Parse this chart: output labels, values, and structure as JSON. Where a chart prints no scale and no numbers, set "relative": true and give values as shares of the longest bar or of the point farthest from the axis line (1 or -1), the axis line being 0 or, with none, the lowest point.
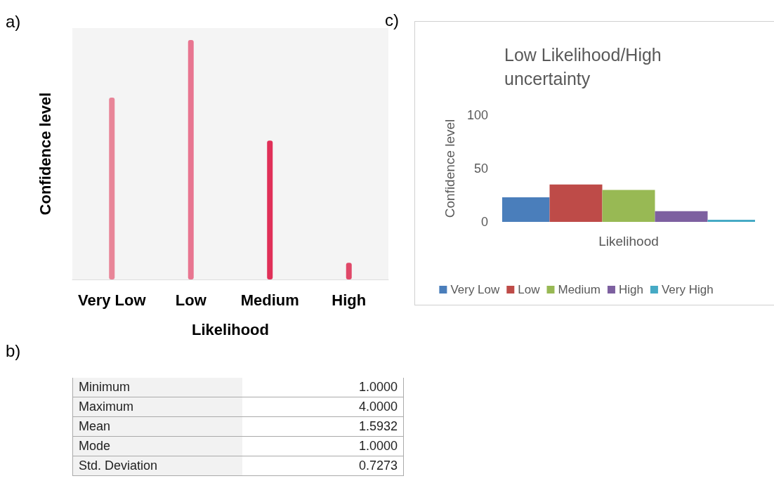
{
  "chart_data": [
    {
      "type": "bar",
      "annotations": [
        "a)"
      ],
      "xlabel": "Likelihood",
      "ylabel": "Confidence level",
      "categories": [
        "Very Low",
        "Low",
        "Medium",
        "High"
      ],
      "relative": true,
      "values": [
        0.76,
        1,
        0.58,
        0.07
      ],
      "colors": [
        "#e88598",
        "#e87590",
        "#e03058",
        "#e04868"
      ],
      "grid": false,
      "legend": false
    },
    {
      "type": "other",
      "annotations": [
        "b)"
      ],
      "categories": [
        "Minimum",
        "Maximum",
        "Mean",
        "Mode",
        "Std. Deviation"
      ],
      "value_labels": [
        "1.0000",
        "4.0000",
        "1.5932",
        "1.0000",
        "0.7273"
      ]
    },
    {
      "type": "bar",
      "annotations": [
        "c)"
      ],
      "title": "Low Likelihood/High uncertainty",
      "xlabel": "Likelihood",
      "ylabel": "Confidence level",
      "categories": [
        null
      ],
      "ylim": [
        0,
        100
      ],
      "yticks": [
        0,
        50,
        100
      ],
      "grid": false,
      "legend": "bottom",
      "series": [
        {
          "name": "Very Low",
          "color": "#4a7ebb",
          "values": [
            23
          ]
        },
        {
          "name": "Low",
          "color": "#be4b48",
          "values": [
            35
          ]
        },
        {
          "name": "Medium",
          "color": "#98b954",
          "values": [
            30
          ]
        },
        {
          "name": "High",
          "color": "#7d60a0",
          "values": [
            10
          ]
        },
        {
          "name": "Very High",
          "color": "#46aac5",
          "values": [
            2
          ]
        }
      ]
    }
  ]
}
